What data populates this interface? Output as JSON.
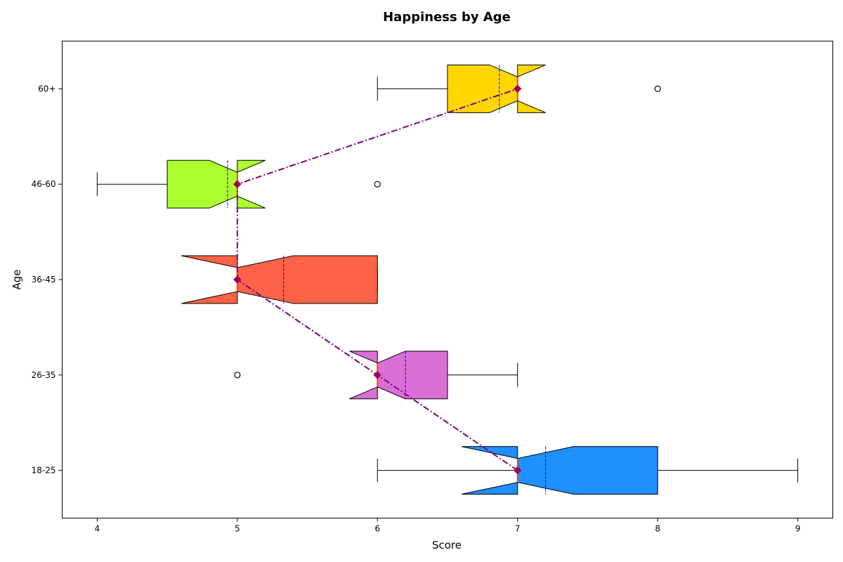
{
  "chart_data": {
    "type": "boxplot",
    "orientation": "horizontal",
    "notched": true,
    "title": "Happiness by Age",
    "xlabel": "Score",
    "ylabel": "Age",
    "xlim": [
      3.75,
      9.25
    ],
    "xticks": [
      4,
      5,
      6,
      7,
      8,
      9
    ],
    "categories": [
      "18-25",
      "26-35",
      "36-45",
      "46-60",
      "60+"
    ],
    "grid": false,
    "boxes": [
      {
        "category": "18-25",
        "color": "#1e90ff",
        "whisker_low": 6,
        "q1": 7,
        "median": 7,
        "q3": 8,
        "whisker_high": 9,
        "notch_low": 6.6,
        "notch_high": 7.4,
        "mean": 7.2,
        "outliers": []
      },
      {
        "category": "26-35",
        "color": "#da70d6",
        "whisker_low": 6,
        "q1": 6,
        "median": 6,
        "q3": 6.5,
        "whisker_high": 7,
        "notch_low": 5.8,
        "notch_high": 6.2,
        "mean": 6.2,
        "outliers": [
          5
        ]
      },
      {
        "category": "36-45",
        "color": "#ff6347",
        "whisker_low": 5,
        "q1": 5,
        "median": 5,
        "q3": 6,
        "whisker_high": 6,
        "notch_low": 4.6,
        "notch_high": 5.4,
        "mean": 5.33,
        "outliers": []
      },
      {
        "category": "46-60",
        "color": "#adff2f",
        "whisker_low": 4,
        "q1": 4.5,
        "median": 5,
        "q3": 5,
        "whisker_high": 5,
        "notch_low": 4.8,
        "notch_high": 5.2,
        "mean": 4.93,
        "outliers": [
          6
        ]
      },
      {
        "category": "60+",
        "color": "#ffd700",
        "whisker_low": 6,
        "q1": 6.5,
        "median": 7,
        "q3": 7,
        "whisker_high": 7,
        "notch_low": 6.8,
        "notch_high": 7.2,
        "mean": 6.87,
        "outliers": [
          8
        ]
      }
    ],
    "median_line": {
      "values": [
        7,
        6,
        5,
        5,
        7
      ],
      "color": "#800080",
      "marker_color": "#a0004f",
      "style": "dash-dot"
    },
    "mean_line_color": "#0000ff",
    "median_tick_color": "#ff4500"
  }
}
